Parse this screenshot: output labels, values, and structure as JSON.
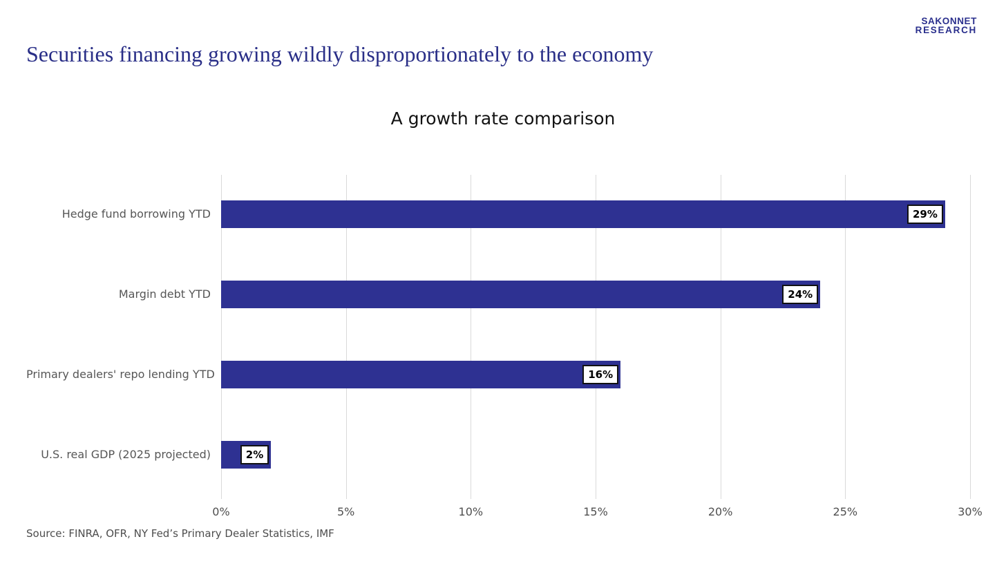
{
  "brand": {
    "line1": "SAKONNET",
    "line2": "RESEARCH"
  },
  "header": {
    "title": "Securities financing growing wildly disproportionately to the economy"
  },
  "chart_data": {
    "type": "bar",
    "orientation": "horizontal",
    "title": "A growth rate comparison",
    "categories": [
      "Hedge fund borrowing YTD",
      "Margin debt YTD",
      "Primary dealers' repo lending YTD",
      "U.S. real GDP (2025 projected)"
    ],
    "values": [
      29,
      24,
      16,
      2
    ],
    "value_labels": [
      "29%",
      "24%",
      "16%",
      "2%"
    ],
    "xlim": [
      0,
      30
    ],
    "x_ticks": [
      {
        "value": 0,
        "label": "0%"
      },
      {
        "value": 5,
        "label": "5%"
      },
      {
        "value": 10,
        "label": "10%"
      },
      {
        "value": 15,
        "label": "15%"
      },
      {
        "value": 20,
        "label": "20%"
      },
      {
        "value": 25,
        "label": "25%"
      },
      {
        "value": 30,
        "label": "30%"
      }
    ],
    "grid": true,
    "legend": false,
    "bar_color": "#2E3192",
    "gridline_color": "#D9D9D9",
    "value_box_style": {
      "background": "#FFFFFF",
      "border": "#111111",
      "text": "#000000"
    }
  },
  "footer": {
    "source": "Source: FINRA, OFR, NY Fed’s Primary Dealer Statistics, IMF"
  }
}
